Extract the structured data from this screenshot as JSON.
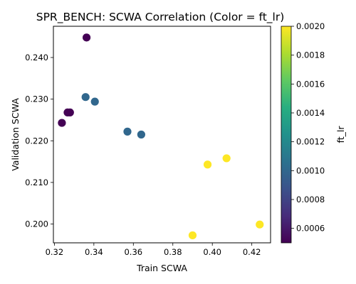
{
  "chart_data": {
    "type": "scatter",
    "title": "SPR_BENCH: SCWA Correlation (Color = ft_lr)",
    "xlabel": "Train SCWA",
    "ylabel": "Validation SCWA",
    "xlim": [
      0.3195,
      0.4295
    ],
    "ylim": [
      0.1955,
      0.2475
    ],
    "xticks": [
      0.32,
      0.34,
      0.36,
      0.38,
      0.4,
      0.42
    ],
    "xtick_labels": [
      "0.32",
      "0.34",
      "0.36",
      "0.38",
      "0.40",
      "0.42"
    ],
    "yticks": [
      0.2,
      0.21,
      0.22,
      0.23,
      0.24
    ],
    "ytick_labels": [
      "0.200",
      "0.210",
      "0.220",
      "0.230",
      "0.240"
    ],
    "grid": false,
    "colorbar": {
      "label": "ft_lr",
      "colormap": "viridis",
      "range": [
        0.0005,
        0.002
      ],
      "ticks": [
        0.0006,
        0.0008,
        0.001,
        0.0012,
        0.0014,
        0.0016,
        0.0018,
        0.002
      ],
      "tick_labels": [
        "0.0006",
        "0.0008",
        "0.0010",
        "0.0012",
        "0.0014",
        "0.0016",
        "0.0018",
        "0.0020"
      ]
    },
    "points": [
      {
        "x": 0.3363,
        "y": 0.2448,
        "c": 0.0005
      },
      {
        "x": 0.3267,
        "y": 0.2268,
        "c": 0.0005
      },
      {
        "x": 0.3279,
        "y": 0.2268,
        "c": 0.0005
      },
      {
        "x": 0.3238,
        "y": 0.2243,
        "c": 0.0005
      },
      {
        "x": 0.3358,
        "y": 0.2305,
        "c": 0.001
      },
      {
        "x": 0.3405,
        "y": 0.2294,
        "c": 0.001
      },
      {
        "x": 0.357,
        "y": 0.2222,
        "c": 0.001
      },
      {
        "x": 0.364,
        "y": 0.2215,
        "c": 0.001
      },
      {
        "x": 0.3976,
        "y": 0.2143,
        "c": 0.002
      },
      {
        "x": 0.4072,
        "y": 0.2158,
        "c": 0.002
      },
      {
        "x": 0.39,
        "y": 0.1973,
        "c": 0.002
      },
      {
        "x": 0.424,
        "y": 0.1999,
        "c": 0.002
      }
    ]
  }
}
